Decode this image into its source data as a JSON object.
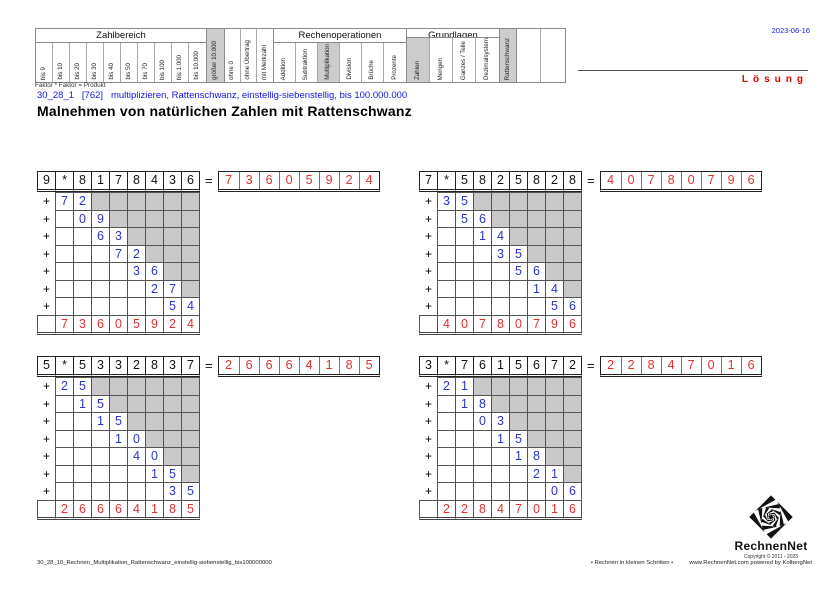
{
  "page": {
    "date": "2023-06-16",
    "solution_label": "Lösung",
    "formula_note": "Faktor * Faktor = Produkt",
    "subtitle": "30_28_1   [762]   multiplizieren, Rattenschwanz, einstellig-siebenstellig, bis 100.000.000",
    "title": "Malnehmen von natürlichen Zahlen mit Rattenschwanz"
  },
  "category_table": {
    "sections": [
      {
        "title": "Zahlbereich",
        "width_class": "narrow",
        "columns": [
          {
            "label": "bis 9"
          },
          {
            "label": "bis 10"
          },
          {
            "label": "bis 20"
          },
          {
            "label": "bis 30"
          },
          {
            "label": "bis 40"
          },
          {
            "label": "bis 50"
          },
          {
            "label": "bis 70"
          },
          {
            "label": "bis 100"
          },
          {
            "label": "bis 1.000"
          },
          {
            "label": "bis 10.000"
          }
        ]
      },
      {
        "title": "",
        "width_class": "narrow",
        "columns": [
          {
            "label": "größer 10.000",
            "highlight": true
          }
        ]
      },
      {
        "title": "",
        "width_class": "flags",
        "columns": [
          {
            "label": "ohne 0"
          },
          {
            "label": "ohne Übertrag"
          },
          {
            "label": "mit Merkzahl"
          }
        ]
      },
      {
        "title": "Rechenoperationen",
        "width_class": "ops",
        "columns": [
          {
            "label": "Addition"
          },
          {
            "label": "Subtraktion"
          },
          {
            "label": "Multiplikation",
            "highlight": true
          },
          {
            "label": "Division"
          },
          {
            "label": "Brüche"
          },
          {
            "label": "Prozente"
          }
        ]
      },
      {
        "title": "Grundlagen",
        "width_class": "grund",
        "columns": [
          {
            "label": "Zahlen",
            "highlight": true
          },
          {
            "label": "Mengen"
          },
          {
            "label": "Ganzes / Teile"
          },
          {
            "label": "Dezimalsystem"
          }
        ]
      },
      {
        "title": "",
        "width_class": "flags",
        "columns": [
          {
            "label": "Rattenschwanz",
            "highlight": true
          }
        ]
      },
      {
        "title": "",
        "width_class": "empty",
        "columns": [
          {
            "label": ""
          },
          {
            "label": ""
          }
        ]
      }
    ]
  },
  "symbols": {
    "multiply": "*",
    "plus": "+",
    "equals": "="
  },
  "problems": [
    {
      "factor": "9",
      "digits": [
        "8",
        "1",
        "7",
        "8",
        "4",
        "3",
        "6"
      ],
      "partials": [
        [
          "7",
          "2"
        ],
        [
          "0",
          "9"
        ],
        [
          "6",
          "3"
        ],
        [
          "7",
          "2"
        ],
        [
          "3",
          "6"
        ],
        [
          "2",
          "7"
        ],
        [
          "5",
          "4"
        ]
      ],
      "result": [
        "7",
        "3",
        "6",
        "0",
        "5",
        "9",
        "2",
        "4"
      ]
    },
    {
      "factor": "7",
      "digits": [
        "5",
        "8",
        "2",
        "5",
        "8",
        "2",
        "8"
      ],
      "partials": [
        [
          "3",
          "5"
        ],
        [
          "5",
          "6"
        ],
        [
          "1",
          "4"
        ],
        [
          "3",
          "5"
        ],
        [
          "5",
          "6"
        ],
        [
          "1",
          "4"
        ],
        [
          "5",
          "6"
        ]
      ],
      "result": [
        "4",
        "0",
        "7",
        "8",
        "0",
        "7",
        "9",
        "6"
      ]
    },
    {
      "factor": "5",
      "digits": [
        "5",
        "3",
        "3",
        "2",
        "8",
        "3",
        "7"
      ],
      "partials": [
        [
          "2",
          "5"
        ],
        [
          "1",
          "5"
        ],
        [
          "1",
          "5"
        ],
        [
          "1",
          "0"
        ],
        [
          "4",
          "0"
        ],
        [
          "1",
          "5"
        ],
        [
          "3",
          "5"
        ]
      ],
      "result": [
        "2",
        "6",
        "6",
        "6",
        "4",
        "1",
        "8",
        "5"
      ]
    },
    {
      "factor": "3",
      "digits": [
        "7",
        "6",
        "1",
        "5",
        "6",
        "7",
        "2"
      ],
      "partials": [
        [
          "2",
          "1"
        ],
        [
          "1",
          "8"
        ],
        [
          "0",
          "3"
        ],
        [
          "1",
          "5"
        ],
        [
          "1",
          "8"
        ],
        [
          "2",
          "1"
        ],
        [
          "0",
          "6"
        ]
      ],
      "result": [
        "2",
        "2",
        "8",
        "4",
        "7",
        "0",
        "1",
        "6"
      ]
    }
  ],
  "footer": {
    "left": "30_28_10_Rechnen_Multiplikation_Rattenschwanz_einstellig-siebenstellig_bis100000000",
    "slogan": "• Rechnen in kleinen Schritten •",
    "site": "www.RechnenNet.com powered by KolbergNet"
  },
  "logo": {
    "name": "RechnenNet",
    "copyright": "Copyright © 2011 - 2023"
  },
  "colors": {
    "partial_blue": "#2b35c8",
    "result_red": "#e03131",
    "subtitle_blue": "#1414e6",
    "shade_gray": "#c9c9c9",
    "solution_red": "#e60000"
  }
}
